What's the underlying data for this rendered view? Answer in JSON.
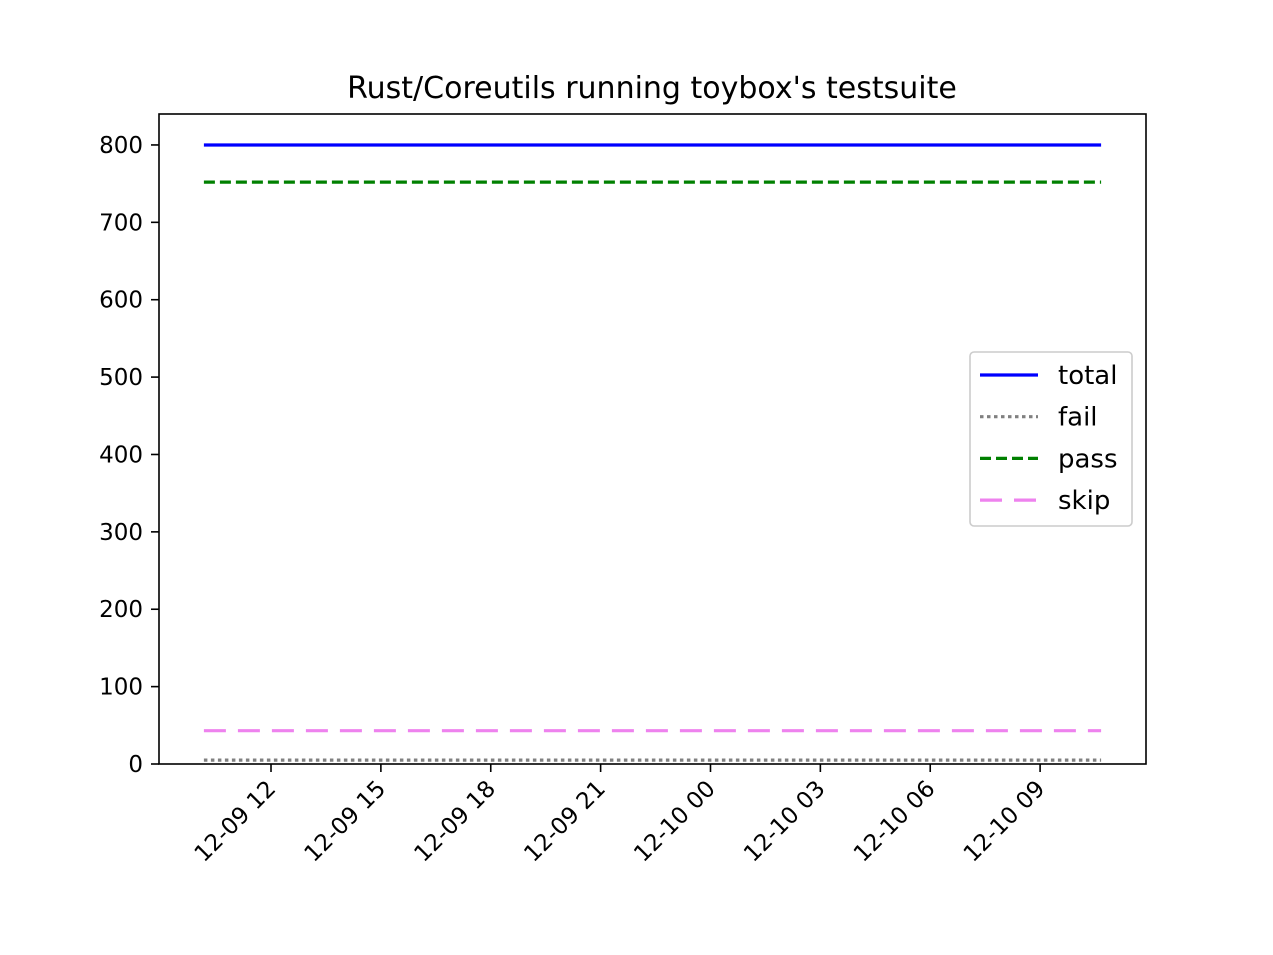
{
  "chart_data": {
    "type": "line",
    "title": "Rust/Coreutils running toybox's testsuite",
    "xlabel": "",
    "ylabel": "",
    "x_start": "12-09 10:10",
    "x_end": "12-10 10:40",
    "x_ticks": [
      "12-09 12",
      "12-09 15",
      "12-09 18",
      "12-09 21",
      "12-10 00",
      "12-10 03",
      "12-10 06",
      "12-10 09"
    ],
    "ylim": [
      0,
      840
    ],
    "y_ticks": [
      0,
      100,
      200,
      300,
      400,
      500,
      600,
      700,
      800
    ],
    "grid": false,
    "legend_position": "center-right",
    "series": [
      {
        "name": "total",
        "values": [
          800,
          800
        ],
        "color": "#0000ff",
        "style": "solid"
      },
      {
        "name": "fail",
        "values": [
          5,
          5
        ],
        "color": "#808080",
        "style": "dotted"
      },
      {
        "name": "pass",
        "values": [
          752,
          752
        ],
        "color": "#008000",
        "style": "dashed"
      },
      {
        "name": "skip",
        "values": [
          43,
          43
        ],
        "color": "#ee82ee",
        "style": "long-dashed"
      }
    ]
  }
}
